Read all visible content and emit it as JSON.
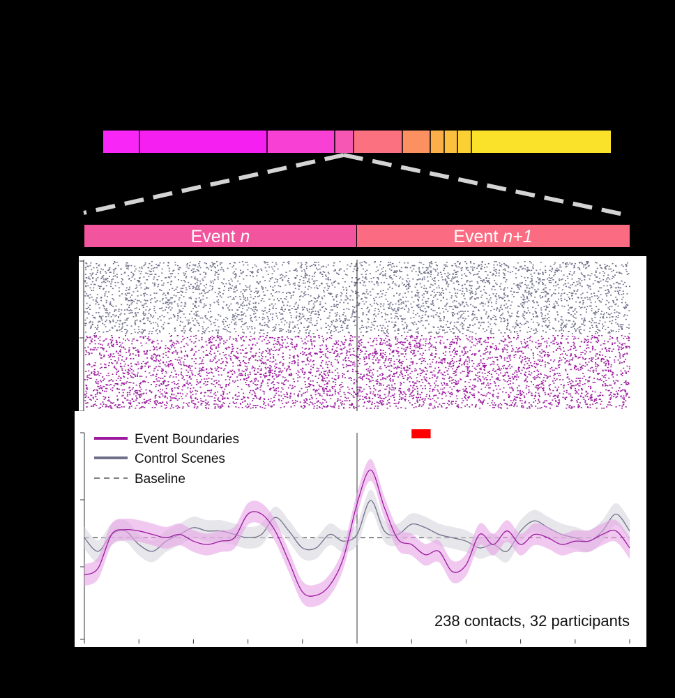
{
  "colors": {
    "boundary": "#9b1a9e",
    "boundary_band": "#e6a4e6",
    "control": "#70708a",
    "control_band": "#d6d6de",
    "baseline": "#555555",
    "significance": "#ff0000",
    "dashed_connector": "#d4d4d4"
  },
  "timeline": {
    "segment_colors": [
      "#f827f8",
      "#f41ff0",
      "#f840d5",
      "#f657b5",
      "#fb7180",
      "#fb9160",
      "#fcae48",
      "#fbc03e",
      "#fbd033",
      "#fbe22a",
      "#ffff00"
    ],
    "boundary_marks": 10,
    "event_n_label_prefix": "Event ",
    "event_n_label_var": "n",
    "event_n1_label_prefix": "Event ",
    "event_n1_label_var": "n+1",
    "event_n_color": "#f2559e",
    "event_n1_color": "#fb6c82"
  },
  "raster": {
    "rows_control": 108,
    "rows_boundary": 108,
    "control_color": "#70708a",
    "boundary_color": "#9b1a9e"
  },
  "chart_data": {
    "type": "line",
    "x_ticks": 11,
    "y_ticks": 4,
    "significance_bar": [
      1.0,
      1.35
    ],
    "series": [
      {
        "name": "Event Boundaries",
        "x": [
          -5.0,
          -4.75,
          -4.5,
          -4.25,
          -4.0,
          -3.75,
          -3.5,
          -3.25,
          -3.0,
          -2.75,
          -2.5,
          -2.25,
          -2.0,
          -1.75,
          -1.5,
          -1.25,
          -1.0,
          -0.75,
          -0.5,
          -0.25,
          0.0,
          0.25,
          0.5,
          0.75,
          1.0,
          1.25,
          1.5,
          1.75,
          2.0,
          2.25,
          2.5,
          2.75,
          3.0,
          3.25,
          3.5,
          3.75,
          4.0,
          4.25,
          4.5,
          4.75,
          5.0
        ],
        "values": [
          -0.55,
          -0.45,
          0.05,
          0.12,
          0.1,
          0.05,
          0.0,
          0.05,
          -0.05,
          -0.1,
          -0.05,
          0.0,
          0.35,
          0.35,
          0.1,
          -0.35,
          -0.8,
          -0.85,
          -0.7,
          -0.3,
          0.5,
          1.0,
          0.45,
          -0.02,
          -0.1,
          -0.25,
          -0.2,
          -0.5,
          -0.4,
          0.05,
          -0.1,
          0.1,
          -0.1,
          0.05,
          0.0,
          -0.1,
          -0.05,
          -0.05,
          0.05,
          0.1,
          -0.15
        ],
        "band": 0.16
      },
      {
        "name": "Control Scenes",
        "x": [
          -5.0,
          -4.75,
          -4.5,
          -4.25,
          -4.0,
          -3.75,
          -3.5,
          -3.25,
          -3.0,
          -2.75,
          -2.5,
          -2.25,
          -2.0,
          -1.75,
          -1.5,
          -1.25,
          -1.0,
          -0.75,
          -0.5,
          -0.25,
          0.0,
          0.25,
          0.5,
          0.75,
          1.0,
          1.25,
          1.5,
          1.75,
          2.0,
          2.25,
          2.5,
          2.75,
          3.0,
          3.25,
          3.5,
          3.75,
          4.0,
          4.25,
          4.5,
          4.75,
          5.0
        ],
        "values": [
          0.0,
          -0.2,
          0.05,
          0.1,
          -0.1,
          -0.2,
          -0.05,
          0.05,
          0.15,
          0.1,
          0.1,
          0.05,
          0.0,
          0.05,
          0.3,
          0.1,
          -0.15,
          -0.15,
          0.05,
          -0.05,
          0.05,
          0.55,
          0.1,
          0.05,
          0.2,
          0.15,
          0.05,
          0.0,
          -0.05,
          -0.15,
          -0.1,
          -0.2,
          0.1,
          0.25,
          0.15,
          0.05,
          0.0,
          -0.05,
          0.1,
          0.35,
          0.1
        ],
        "band": 0.16
      }
    ],
    "baseline": 0,
    "xlim": [
      -5,
      5
    ],
    "ylim": [
      -1.5,
      1.55
    ],
    "legend": [
      "Event Boundaries",
      "Control Scenes",
      "Baseline"
    ],
    "annotation": "238 contacts, 32 participants"
  }
}
